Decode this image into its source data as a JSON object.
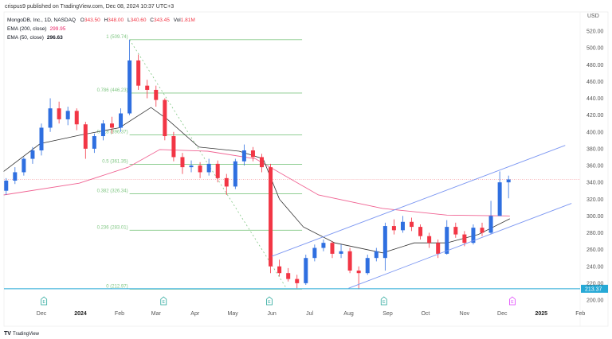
{
  "header": {
    "published": "crispus9 published on TradingView.com, Dec 08, 2024 10:37 UTC+3"
  },
  "legend": {
    "symbol": "MongoDB, Inc., 1D, NASDAQ",
    "o_label": "O",
    "o": "343.50",
    "h_label": "H",
    "h": "348.00",
    "l_label": "L",
    "l": "340.60",
    "c_label": "C",
    "c": "343.45",
    "vol_label": "Vol",
    "vol": "1.81M",
    "ema200_label": "EMA (200, close)",
    "ema200": "299.95",
    "ema50_label": "EMA (50, close)",
    "ema50": "296.63"
  },
  "footer": {
    "brand": "TradingView"
  },
  "colors": {
    "up": "#2f6fe0",
    "down": "#f23645",
    "ema200": "#f06292",
    "ema50": "#333333",
    "fib": "#81c784",
    "channel": "#7b96f2",
    "support": "#26a9d6",
    "last_price": "#f7a1a8"
  },
  "chart_data": {
    "type": "candlestick",
    "currency": "USD",
    "ylim": [
      195,
      530
    ],
    "yticks": [
      "520.00",
      "500.00",
      "480.00",
      "460.00",
      "440.00",
      "420.00",
      "400.00",
      "380.00",
      "360.00",
      "340.00",
      "320.00",
      "300.00",
      "280.00",
      "260.00",
      "240.00",
      "220.00",
      "200.00"
    ],
    "xticks": [
      {
        "label": "Dec",
        "date": "2023-12-01",
        "bold": false
      },
      {
        "label": "2024",
        "date": "2024-01-01",
        "bold": true
      },
      {
        "label": "Feb",
        "date": "2024-02-01",
        "bold": false
      },
      {
        "label": "Mar",
        "date": "2024-03-01",
        "bold": false
      },
      {
        "label": "Apr",
        "date": "2024-04-01",
        "bold": false
      },
      {
        "label": "May",
        "date": "2024-05-01",
        "bold": false
      },
      {
        "label": "Jun",
        "date": "2024-06-01",
        "bold": false
      },
      {
        "label": "Jul",
        "date": "2024-07-01",
        "bold": false
      },
      {
        "label": "Aug",
        "date": "2024-08-01",
        "bold": false
      },
      {
        "label": "Sep",
        "date": "2024-09-01",
        "bold": false
      },
      {
        "label": "Oct",
        "date": "2024-10-01",
        "bold": false
      },
      {
        "label": "Nov",
        "date": "2024-11-01",
        "bold": false
      },
      {
        "label": "Dec",
        "date": "2024-12-01",
        "bold": false
      },
      {
        "label": "2025",
        "date": "2025-01-01",
        "bold": true
      },
      {
        "label": "Feb",
        "date": "2025-02-01",
        "bold": false
      }
    ],
    "candles": [
      [
        "2023-11-03",
        330,
        345,
        325,
        342
      ],
      [
        "2023-11-10",
        342,
        358,
        338,
        352
      ],
      [
        "2023-11-17",
        352,
        370,
        348,
        368
      ],
      [
        "2023-11-24",
        368,
        382,
        362,
        378
      ],
      [
        "2023-12-01",
        378,
        410,
        372,
        405
      ],
      [
        "2023-12-08",
        405,
        440,
        400,
        428
      ],
      [
        "2023-12-15",
        428,
        436,
        410,
        415
      ],
      [
        "2023-12-22",
        415,
        430,
        408,
        425
      ],
      [
        "2023-12-29",
        425,
        428,
        402,
        409
      ],
      [
        "2024-01-05",
        409,
        412,
        368,
        380
      ],
      [
        "2024-01-12",
        380,
        398,
        375,
        395
      ],
      [
        "2024-01-19",
        395,
        414,
        390,
        410
      ],
      [
        "2024-01-26",
        410,
        418,
        398,
        405
      ],
      [
        "2024-02-02",
        405,
        428,
        400,
        422
      ],
      [
        "2024-02-09",
        422,
        509.74,
        420,
        485
      ],
      [
        "2024-02-16",
        485,
        492,
        450,
        455
      ],
      [
        "2024-02-23",
        455,
        462,
        440,
        450
      ],
      [
        "2024-03-01",
        450,
        455,
        430,
        438
      ],
      [
        "2024-03-08",
        438,
        440,
        390,
        395
      ],
      [
        "2024-03-15",
        395,
        400,
        365,
        370
      ],
      [
        "2024-03-22",
        370,
        375,
        350,
        358
      ],
      [
        "2024-03-29",
        358,
        366,
        352,
        360
      ],
      [
        "2024-04-05",
        360,
        364,
        345,
        352
      ],
      [
        "2024-04-12",
        352,
        368,
        348,
        362
      ],
      [
        "2024-04-19",
        362,
        366,
        340,
        345
      ],
      [
        "2024-04-26",
        345,
        350,
        325,
        335
      ],
      [
        "2024-05-03",
        335,
        368,
        332,
        365
      ],
      [
        "2024-05-10",
        365,
        385,
        360,
        378
      ],
      [
        "2024-05-17",
        378,
        382,
        365,
        370
      ],
      [
        "2024-05-24",
        370,
        374,
        352,
        358
      ],
      [
        "2024-05-31",
        358,
        362,
        232,
        240
      ],
      [
        "2024-06-07",
        240,
        248,
        228,
        232
      ],
      [
        "2024-06-14",
        232,
        238,
        222,
        225
      ],
      [
        "2024-06-21",
        225,
        230,
        214,
        220
      ],
      [
        "2024-06-28",
        220,
        254,
        218,
        250
      ],
      [
        "2024-07-05",
        250,
        266,
        246,
        262
      ],
      [
        "2024-07-12",
        262,
        272,
        258,
        268
      ],
      [
        "2024-07-19",
        268,
        270,
        250,
        255
      ],
      [
        "2024-07-26",
        255,
        266,
        250,
        258
      ],
      [
        "2024-08-02",
        258,
        262,
        232,
        235
      ],
      [
        "2024-08-09",
        235,
        240,
        213,
        232
      ],
      [
        "2024-08-16",
        232,
        254,
        230,
        250
      ],
      [
        "2024-08-23",
        250,
        262,
        246,
        258
      ],
      [
        "2024-08-30",
        250,
        292,
        235,
        288
      ],
      [
        "2024-09-06",
        288,
        296,
        278,
        283
      ],
      [
        "2024-09-13",
        283,
        300,
        280,
        293
      ],
      [
        "2024-09-20",
        293,
        298,
        282,
        287
      ],
      [
        "2024-09-27",
        287,
        290,
        272,
        276
      ],
      [
        "2024-10-04",
        276,
        280,
        262,
        268
      ],
      [
        "2024-10-11",
        268,
        272,
        250,
        255
      ],
      [
        "2024-10-18",
        255,
        295,
        254,
        287
      ],
      [
        "2024-10-25",
        287,
        292,
        274,
        278
      ],
      [
        "2024-11-01",
        278,
        282,
        264,
        268
      ],
      [
        "2024-11-08",
        268,
        290,
        266,
        286
      ],
      [
        "2024-11-15",
        286,
        292,
        276,
        280
      ],
      [
        "2024-11-22",
        280,
        318,
        278,
        300
      ],
      [
        "2024-11-29",
        300,
        353,
        300,
        340
      ],
      [
        "2024-12-06",
        340,
        348,
        321,
        343.45
      ]
    ],
    "ema200": [
      [
        "2023-11-01",
        325
      ],
      [
        "2023-12-31",
        339
      ],
      [
        "2024-02-08",
        358
      ],
      [
        "2024-03-04",
        379
      ],
      [
        "2024-04-11",
        377
      ],
      [
        "2024-05-19",
        368
      ],
      [
        "2024-07-08",
        325
      ],
      [
        "2024-08-28",
        309
      ],
      [
        "2024-10-18",
        301
      ],
      [
        "2024-12-07",
        299.95
      ]
    ],
    "ema50": [
      [
        "2023-11-01",
        353
      ],
      [
        "2023-11-30",
        386
      ],
      [
        "2023-12-31",
        396
      ],
      [
        "2024-02-01",
        405
      ],
      [
        "2024-02-26",
        429
      ],
      [
        "2024-03-10",
        415
      ],
      [
        "2024-04-04",
        382
      ],
      [
        "2024-05-06",
        377
      ],
      [
        "2024-05-25",
        368
      ],
      [
        "2024-06-07",
        320
      ],
      [
        "2024-06-26",
        287
      ],
      [
        "2024-07-21",
        268
      ],
      [
        "2024-08-28",
        256
      ],
      [
        "2024-09-22",
        268
      ],
      [
        "2024-10-18",
        268
      ],
      [
        "2024-11-12",
        278
      ],
      [
        "2024-12-07",
        296.63
      ]
    ],
    "fibonacci": {
      "from": [
        "2024-02-09",
        509.74
      ],
      "to": [
        "2024-06-13",
        212.97
      ],
      "end_date": "2024-06-25",
      "levels": [
        {
          "ratio": 1,
          "price": 509.74,
          "label": "1 (509.74)"
        },
        {
          "ratio": 0.786,
          "price": 446.23,
          "label": "0.786 (446.23)"
        },
        {
          "ratio": 0.618,
          "price": 396.37,
          "label": "0.618 (396.37)"
        },
        {
          "ratio": 0.5,
          "price": 361.35,
          "label": "0.5 (361.35)"
        },
        {
          "ratio": 0.382,
          "price": 326.34,
          "label": "0.382 (326.34)"
        },
        {
          "ratio": 0.236,
          "price": 283.01,
          "label": "0.236 (283.01)"
        },
        {
          "ratio": 0,
          "price": 212.97,
          "label": "0 (212.97)"
        }
      ]
    },
    "channel": {
      "upper": [
        [
          "2024-06-01",
          252
        ],
        [
          "2025-01-20",
          384
        ]
      ],
      "lower": [
        [
          "2024-08-01",
          214
        ],
        [
          "2025-01-25",
          315
        ]
      ]
    },
    "support": {
      "price": 213.37,
      "label": "213.37"
    },
    "last_price": 343.45,
    "earnings": [
      {
        "date": "2023-12-03",
        "label": "E",
        "color": "#26a69a"
      },
      {
        "date": "2024-03-07",
        "label": "E",
        "color": "#26a69a"
      },
      {
        "date": "2024-05-30",
        "label": "E",
        "color": "#26a69a"
      },
      {
        "date": "2024-08-29",
        "label": "E",
        "color": "#26a69a"
      },
      {
        "date": "2024-12-09",
        "label": "E",
        "color": "#e040fb"
      }
    ]
  }
}
